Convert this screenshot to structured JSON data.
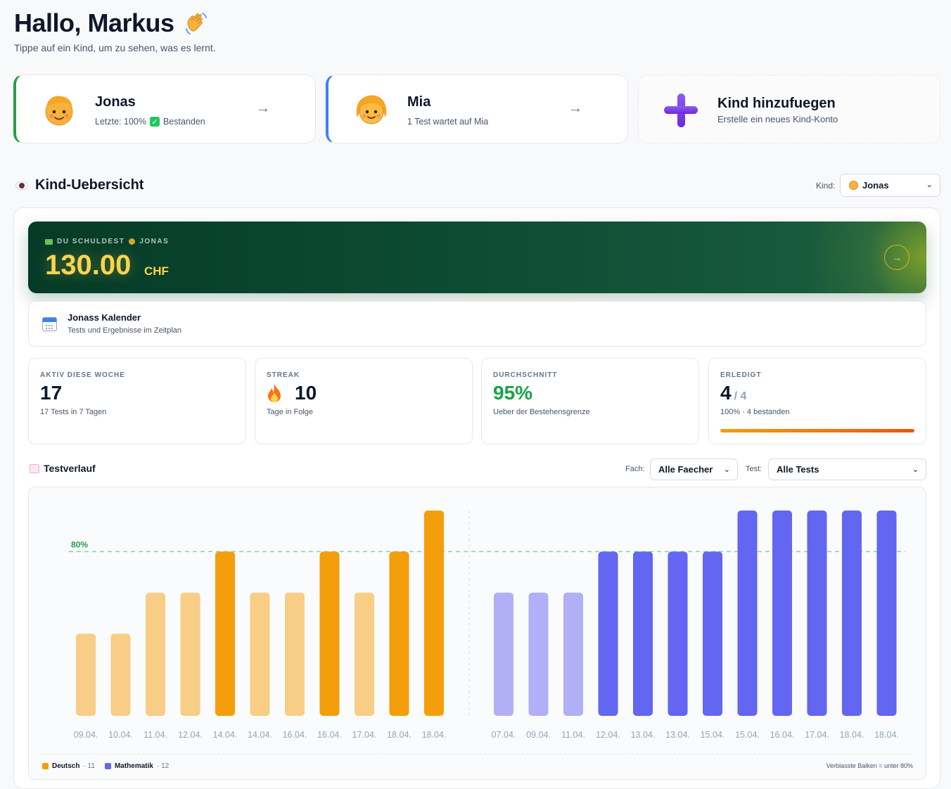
{
  "header": {
    "greeting": "Hallo, Markus",
    "greeting_icon": "waving-hand-icon",
    "subtitle": "Tippe auf ein Kind, um zu sehen, was es lernt."
  },
  "children": [
    {
      "name": "Jonas",
      "status_prefix": "Letzte: 100%",
      "status_label": "Bestanden",
      "accent": "#22a047",
      "arrow": "→"
    },
    {
      "name": "Mia",
      "status_text": "1 Test wartet auf Mia",
      "accent": "#3b82f6",
      "arrow": "→"
    }
  ],
  "add_child": {
    "title": "Kind hinzufuegen",
    "subtitle": "Erstelle ein neues Kind-Konto"
  },
  "overview": {
    "title": "Kind-Uebersicht",
    "kind_label": "Kind:",
    "kind_selected": "Jonas"
  },
  "debt": {
    "label_part1": "DU SCHULDEST",
    "label_part2": "JONAS",
    "amount": "130.00",
    "currency": "CHF",
    "button": "→"
  },
  "calendar": {
    "title": "Jonass Kalender",
    "subtitle": "Tests und Ergebnisse im Zeitplan"
  },
  "stats": [
    {
      "label": "AKTIV DIESE WOCHE",
      "value": "17",
      "sub": "17 Tests in 7 Tagen"
    },
    {
      "label": "STREAK",
      "value": "10",
      "sub": "Tage in Folge",
      "icon": "flame-icon"
    },
    {
      "label": "DURCHSCHNITT",
      "value": "95%",
      "sub": "Ueber der Bestehensgrenze",
      "color": "#16a34a"
    },
    {
      "label": "ERLEDIGT",
      "value": "4",
      "value_total": "/ 4",
      "sub": "100% · 4 bestanden",
      "progress": 1.0
    }
  ],
  "testverlauf": {
    "title": "Testverlauf",
    "fach_label": "Fach:",
    "fach_value": "Alle Faecher",
    "test_label": "Test:",
    "test_value": "Alle Tests",
    "legend": [
      {
        "name": "Deutsch",
        "count": "· 11",
        "color": "#f59e0b"
      },
      {
        "name": "Mathematik",
        "count": "· 12",
        "color": "#6366f1"
      }
    ],
    "note": "Verblasste Balken = unter 80%"
  },
  "chart_data": {
    "type": "bar",
    "threshold": 80,
    "threshold_label": "80%",
    "ylim": [
      0,
      100
    ],
    "series": [
      {
        "name": "Deutsch",
        "color": "#f59e0b",
        "categories": [
          "09.04.",
          "10.04.",
          "11.04.",
          "12.04.",
          "14.04.",
          "14.04.",
          "16.04.",
          "16.04.",
          "17.04.",
          "18.04.",
          "18.04."
        ],
        "values": [
          40,
          40,
          60,
          60,
          80,
          60,
          60,
          80,
          60,
          80,
          100
        ]
      },
      {
        "name": "Mathematik",
        "color": "#6366f1",
        "categories": [
          "07.04.",
          "09.04.",
          "11.04.",
          "12.04.",
          "13.04.",
          "13.04.",
          "15.04.",
          "15.04.",
          "16.04.",
          "17.04.",
          "18.04.",
          "18.04."
        ],
        "values": [
          60,
          60,
          60,
          80,
          80,
          80,
          80,
          100,
          100,
          100,
          100,
          100
        ]
      }
    ]
  }
}
